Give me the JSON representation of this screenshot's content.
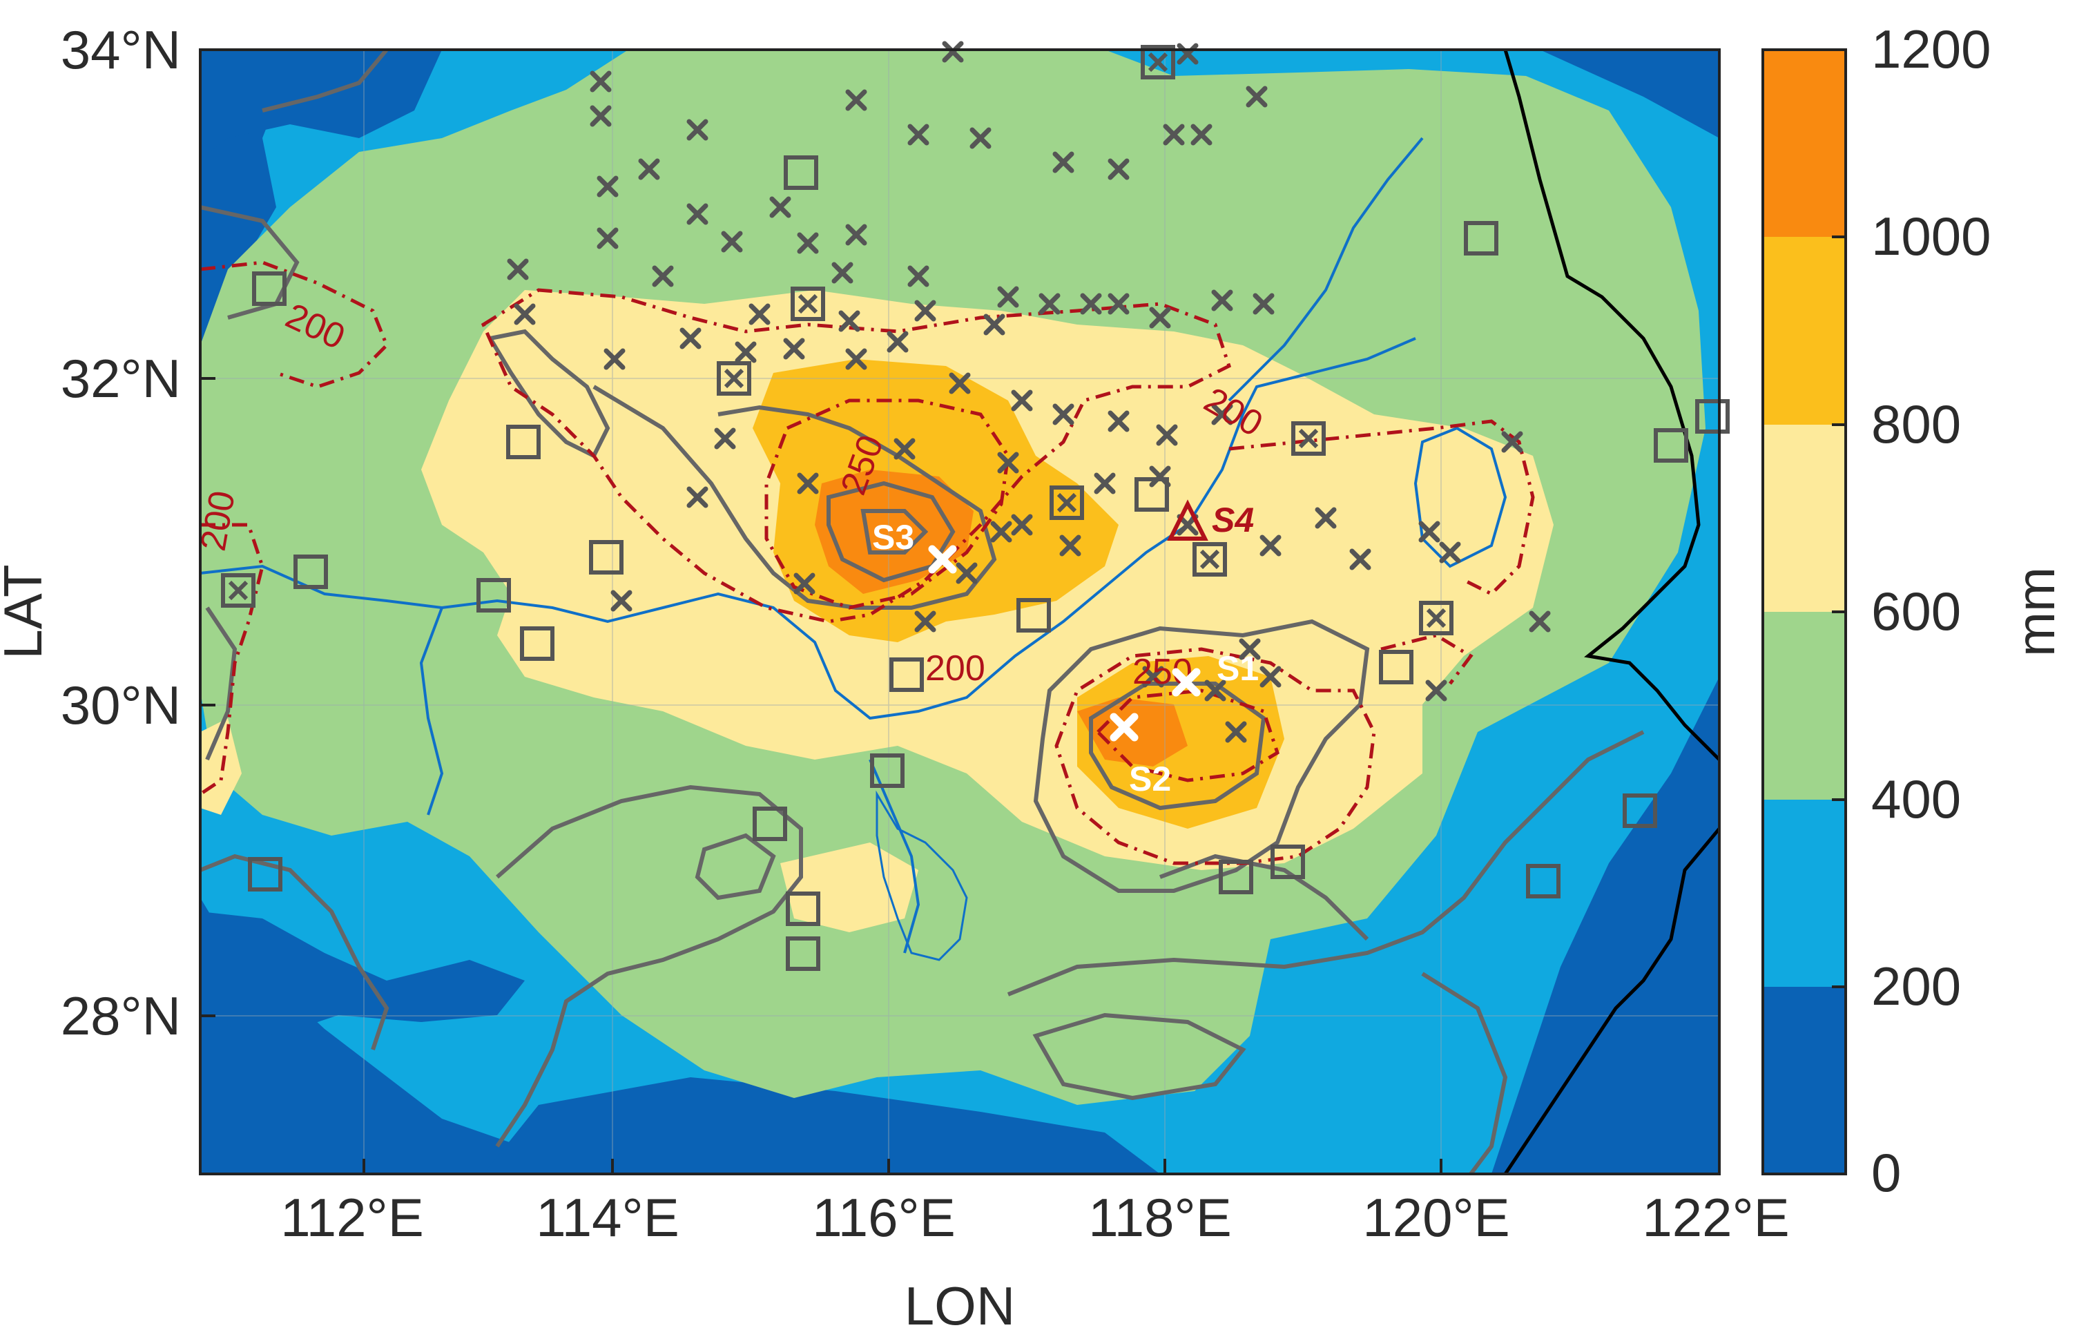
{
  "map": {
    "x_axis_label": "LON",
    "y_axis_label": "LAT",
    "lon_ticks": [
      "112°E",
      "114°E",
      "116°E",
      "118°E",
      "120°E",
      "122°E"
    ],
    "lat_ticks": [
      "28°N",
      "30°N",
      "32°N",
      "34°N"
    ],
    "lon_range": [
      111,
      122
    ],
    "lat_range": [
      27,
      34
    ],
    "grid": true
  },
  "colorbar": {
    "unit": "mm",
    "ticks": [
      "0",
      "200",
      "400",
      "600",
      "800",
      "1000",
      "1200"
    ],
    "levels": [
      0,
      200,
      400,
      600,
      800,
      1000,
      1200
    ],
    "colors": [
      "#0a62b5",
      "#10a9e0",
      "#9fd58c",
      "#fdea9b",
      "#fbbf1c",
      "#f98a10"
    ]
  },
  "contours": {
    "dashed_color": "#b0121b",
    "dashed_labels": [
      "200",
      "200",
      "200",
      "250",
      "200",
      "200",
      "250"
    ],
    "solid_color": "#666666"
  },
  "sites": [
    {
      "name": "S1",
      "lon": 118.2,
      "lat": 30.15
    },
    {
      "name": "S2",
      "lon": 117.75,
      "lat": 29.85
    },
    {
      "name": "S3",
      "lon": 116.4,
      "lat": 30.9
    },
    {
      "name": "S4",
      "lon": 118.2,
      "lat": 31.1
    }
  ],
  "stations": {
    "x_color": "#555555",
    "square_color": "#555555"
  }
}
